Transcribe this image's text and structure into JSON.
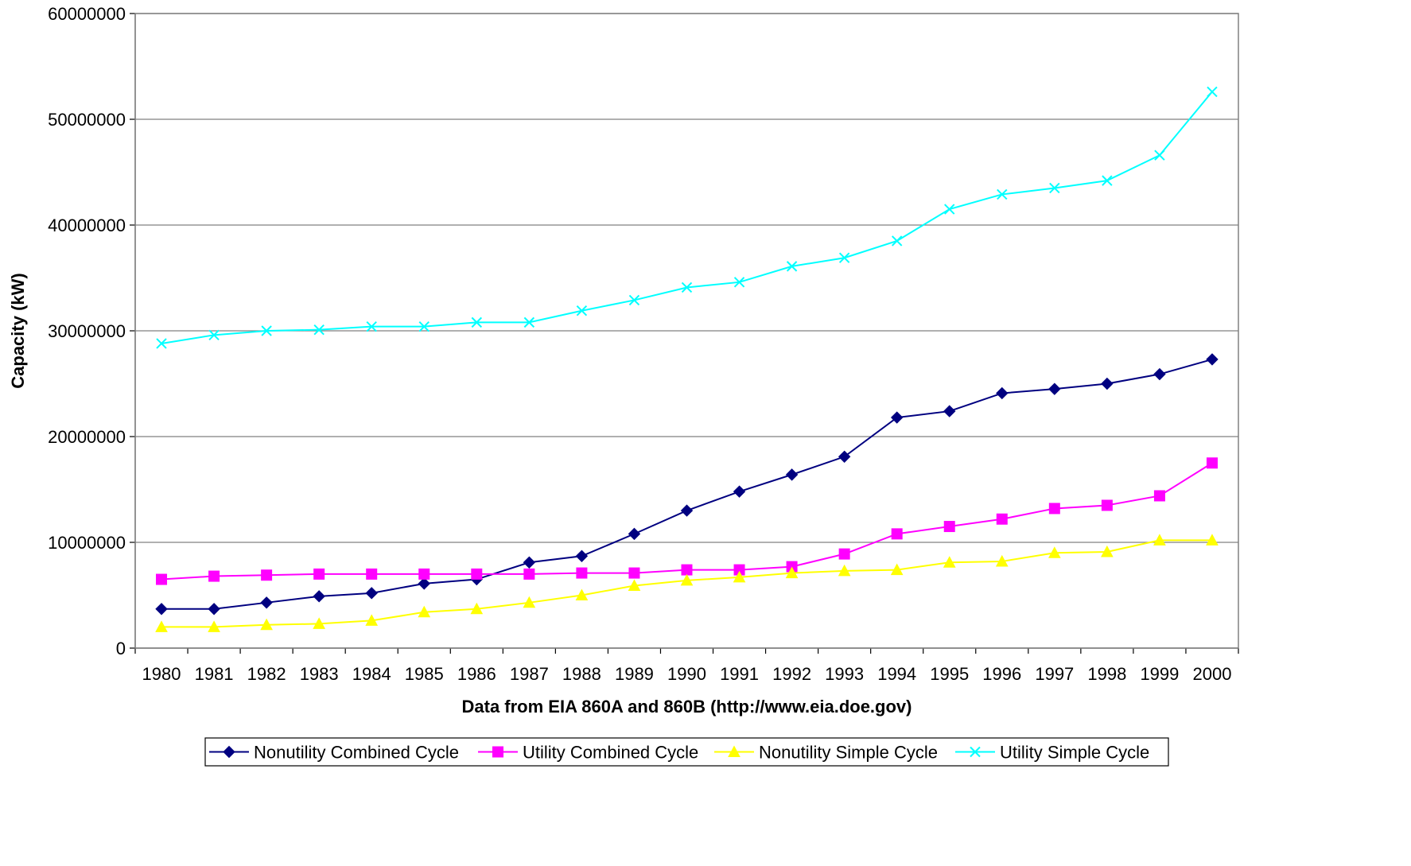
{
  "chart_data": {
    "type": "line",
    "title": "",
    "xlabel": "Data from EIA 860A and 860B (http://www.eia.doe.gov)",
    "ylabel": "Capacity (kW)",
    "ylim": [
      0,
      60000000
    ],
    "yticks": [
      0,
      10000000,
      20000000,
      30000000,
      40000000,
      50000000,
      60000000
    ],
    "grid": "horizontal",
    "legend_position": "bottom",
    "categories": [
      "1980",
      "1981",
      "1982",
      "1983",
      "1984",
      "1985",
      "1986",
      "1987",
      "1988",
      "1989",
      "1990",
      "1991",
      "1992",
      "1993",
      "1994",
      "1995",
      "1996",
      "1997",
      "1998",
      "1999",
      "2000"
    ],
    "series": [
      {
        "name": "Nonutility Combined Cycle",
        "color": "#000080",
        "marker": "diamond",
        "values": [
          3700000,
          3700000,
          4300000,
          4900000,
          5200000,
          6100000,
          6500000,
          8100000,
          8700000,
          10800000,
          13000000,
          14800000,
          16400000,
          18100000,
          21800000,
          22400000,
          24100000,
          24500000,
          25000000,
          25900000,
          27300000
        ]
      },
      {
        "name": "Utility Combined Cycle",
        "color": "#FF00FF",
        "marker": "square",
        "values": [
          6500000,
          6800000,
          6900000,
          7000000,
          7000000,
          7000000,
          7000000,
          7000000,
          7100000,
          7100000,
          7400000,
          7400000,
          7700000,
          8900000,
          10800000,
          11500000,
          12200000,
          13200000,
          13500000,
          14400000,
          17500000
        ]
      },
      {
        "name": "Nonutility Simple Cycle",
        "color": "#FFFF00",
        "marker": "triangle",
        "values": [
          2000000,
          2000000,
          2200000,
          2300000,
          2600000,
          3400000,
          3700000,
          4300000,
          5000000,
          5900000,
          6400000,
          6700000,
          7100000,
          7300000,
          7400000,
          8100000,
          8200000,
          9000000,
          9100000,
          10200000,
          10200000
        ]
      },
      {
        "name": "Utility Simple Cycle",
        "color": "#00FFFF",
        "marker": "x",
        "values": [
          28800000,
          29600000,
          30000000,
          30100000,
          30400000,
          30400000,
          30800000,
          30800000,
          31900000,
          32900000,
          34100000,
          34600000,
          36100000,
          36900000,
          38500000,
          41500000,
          42900000,
          43500000,
          44200000,
          46600000,
          52600000
        ]
      }
    ]
  }
}
